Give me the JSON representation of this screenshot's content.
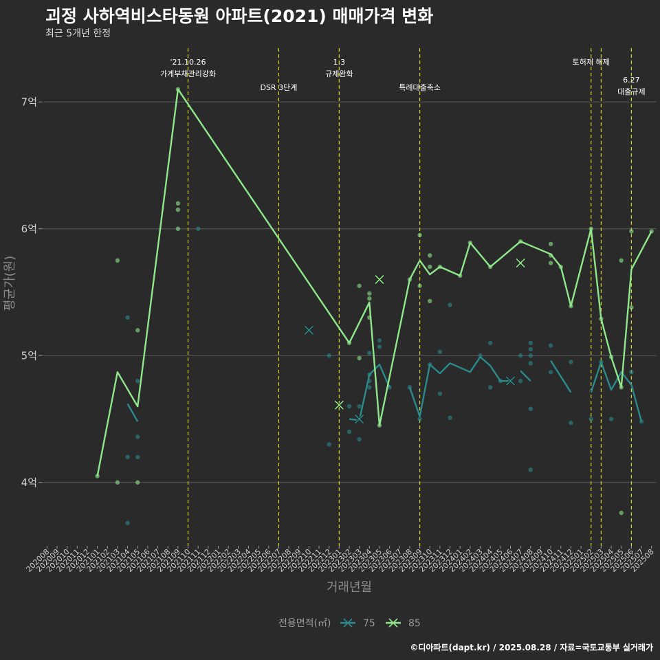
{
  "title": "괴정 사하역비스타동원 아파트(2021) 매매가격 변화",
  "subtitle": "최근 5개년 한정",
  "caption": "©디아파트(dapt.kr) / 2025.08.28 / 자료=국토교통부 실거래가",
  "colors": {
    "background": "#2b2a2b",
    "grid": "#5a5a5a",
    "event_line": "#d8d820",
    "series_75": "#2a8a8c",
    "series_85": "#8ee88a"
  },
  "chart_data": {
    "type": "line",
    "xlabel": "거래년월",
    "ylabel": "평균가(원)",
    "x_categories": [
      "202008",
      "202009",
      "202010",
      "202011",
      "202012",
      "202101",
      "202102",
      "202103",
      "202104",
      "202105",
      "202106",
      "202107",
      "202108",
      "202109",
      "202110",
      "202111",
      "202112",
      "202201",
      "202202",
      "202203",
      "202204",
      "202205",
      "202206",
      "202207",
      "202208",
      "202209",
      "202210",
      "202211",
      "202212",
      "202301",
      "202302",
      "202303",
      "202304",
      "202305",
      "202306",
      "202307",
      "202308",
      "202309",
      "202310",
      "202311",
      "202312",
      "202401",
      "202402",
      "202403",
      "202404",
      "202405",
      "202406",
      "202407",
      "202408",
      "202409",
      "202410",
      "202411",
      "202412",
      "202501",
      "202502",
      "202503",
      "202504",
      "202505",
      "202506",
      "202507",
      "202508"
    ],
    "y_ticks": [
      {
        "value": 4.0,
        "label": "4억"
      },
      {
        "value": 5.0,
        "label": "5억"
      },
      {
        "value": 6.0,
        "label": "6억"
      },
      {
        "value": 7.0,
        "label": "7억"
      }
    ],
    "ylim": [
      3.5,
      7.5
    ],
    "y_unit": "억",
    "grid": true,
    "legend": {
      "title": "전용면적(㎡)",
      "position": "bottom",
      "entries": [
        "75",
        "85"
      ]
    },
    "events": [
      {
        "x": "202110",
        "lines": [
          "'21.10.26",
          "가계부채관리강화"
        ],
        "level": 1
      },
      {
        "x": "202207",
        "lines": [
          "DSR 3단계"
        ],
        "level": 2
      },
      {
        "x": "202301",
        "lines": [
          "1.3",
          "규제완화"
        ],
        "level": 1
      },
      {
        "x": "202309",
        "lines": [
          "특례대출축소"
        ],
        "level": 2
      },
      {
        "x": "202502",
        "lines": [
          "토허제 해제"
        ],
        "level": 1
      },
      {
        "x": "202503",
        "lines": [],
        "level": 1
      },
      {
        "x": "202506",
        "lines": [
          "6.27",
          "대출규제"
        ],
        "level": 3
      }
    ],
    "series": [
      {
        "name": "75",
        "segments": [
          [
            [
              "202104",
              4.62
            ],
            [
              "202105",
              4.48
            ]
          ],
          [
            [
              "202302",
              4.5
            ],
            [
              "202303",
              4.49
            ],
            [
              "202304",
              4.85
            ],
            [
              "202305",
              4.93
            ],
            [
              "202306",
              4.75
            ]
          ],
          [
            [
              "202308",
              4.75
            ],
            [
              "202309",
              4.52
            ],
            [
              "202310",
              4.93
            ],
            [
              "202311",
              4.86
            ],
            [
              "202312",
              4.94
            ],
            [
              "202402",
              4.87
            ],
            [
              "202403",
              4.99
            ],
            [
              "202404",
              4.92
            ],
            [
              "202405",
              4.8
            ],
            [
              "202406",
              4.8
            ]
          ],
          [
            [
              "202407",
              4.88
            ],
            [
              "202408",
              4.8
            ]
          ],
          [
            [
              "202410",
              4.96
            ],
            [
              "202412",
              4.71
            ]
          ],
          [
            [
              "202502",
              4.71
            ],
            [
              "202503",
              4.95
            ],
            [
              "202504",
              4.73
            ],
            [
              "202505",
              4.87
            ],
            [
              "202506",
              4.77
            ],
            [
              "202507",
              4.48
            ]
          ]
        ],
        "points": [
          [
            "202104",
            4.2
          ],
          [
            "202104",
            3.68
          ],
          [
            "202104",
            5.3
          ],
          [
            "202105",
            4.8
          ],
          [
            "202105",
            4.36
          ],
          [
            "202105",
            4.2
          ],
          [
            "202111",
            6.0
          ],
          [
            "202210",
            5.2
          ],
          [
            "202212",
            5.0
          ],
          [
            "202212",
            4.3
          ],
          [
            "202302",
            4.6
          ],
          [
            "202302",
            4.4
          ],
          [
            "202303",
            4.6
          ],
          [
            "202303",
            4.34
          ],
          [
            "202304",
            4.85
          ],
          [
            "202304",
            4.8
          ],
          [
            "202304",
            4.75
          ],
          [
            "202304",
            5.02
          ],
          [
            "202305",
            5.12
          ],
          [
            "202305",
            5.07
          ],
          [
            "202306",
            4.75
          ],
          [
            "202308",
            4.75
          ],
          [
            "202309",
            4.5
          ],
          [
            "202310",
            4.93
          ],
          [
            "202311",
            5.03
          ],
          [
            "202311",
            4.7
          ],
          [
            "202312",
            5.4
          ],
          [
            "202312",
            4.51
          ],
          [
            "202403",
            5.0
          ],
          [
            "202404",
            5.1
          ],
          [
            "202404",
            4.75
          ],
          [
            "202405",
            4.8
          ],
          [
            "202406",
            4.8
          ],
          [
            "202407",
            4.8
          ],
          [
            "202407",
            5.0
          ],
          [
            "202408",
            4.1
          ],
          [
            "202408",
            4.58
          ],
          [
            "202408",
            4.94
          ],
          [
            "202408",
            5.0
          ],
          [
            "202408",
            5.05
          ],
          [
            "202408",
            5.1
          ],
          [
            "202410",
            4.87
          ],
          [
            "202410",
            5.08
          ],
          [
            "202412",
            4.95
          ],
          [
            "202412",
            4.47
          ],
          [
            "202502",
            4.5
          ],
          [
            "202503",
            4.95
          ],
          [
            "202504",
            4.5
          ],
          [
            "202506",
            4.87
          ],
          [
            "202507",
            4.48
          ]
        ],
        "x_marks": [
          [
            "202210",
            5.2
          ],
          [
            "202303",
            4.5
          ],
          [
            "202406",
            4.8
          ]
        ]
      },
      {
        "name": "85",
        "segments": [
          [
            [
              "202101",
              4.05
            ],
            [
              "202103",
              4.87
            ],
            [
              "202105",
              4.6
            ],
            [
              "202109",
              7.1
            ],
            [
              "202302",
              5.1
            ],
            [
              "202304",
              5.42
            ],
            [
              "202305",
              4.45
            ],
            [
              "202308",
              5.6
            ],
            [
              "202309",
              5.75
            ],
            [
              "202310",
              5.64
            ],
            [
              "202311",
              5.7
            ],
            [
              "202401",
              5.63
            ],
            [
              "202402",
              5.89
            ],
            [
              "202404",
              5.7
            ],
            [
              "202407",
              5.9
            ],
            [
              "202410",
              5.8
            ],
            [
              "202411",
              5.7
            ],
            [
              "202412",
              5.39
            ],
            [
              "202502",
              6.0
            ],
            [
              "202503",
              5.29
            ],
            [
              "202504",
              4.99
            ],
            [
              "202505",
              4.75
            ],
            [
              "202506",
              5.68
            ],
            [
              "202508",
              5.98
            ]
          ]
        ],
        "points": [
          [
            "202101",
            4.05
          ],
          [
            "202103",
            5.75
          ],
          [
            "202103",
            4.0
          ],
          [
            "202105",
            5.2
          ],
          [
            "202105",
            4.0
          ],
          [
            "202109",
            7.1
          ],
          [
            "202109",
            6.2
          ],
          [
            "202109",
            6.15
          ],
          [
            "202109",
            6.0
          ],
          [
            "202302",
            5.1
          ],
          [
            "202303",
            5.55
          ],
          [
            "202303",
            4.98
          ],
          [
            "202304",
            5.49
          ],
          [
            "202304",
            5.45
          ],
          [
            "202304",
            5.3
          ],
          [
            "202305",
            4.45
          ],
          [
            "202308",
            5.6
          ],
          [
            "202309",
            5.95
          ],
          [
            "202309",
            5.55
          ],
          [
            "202310",
            5.79
          ],
          [
            "202310",
            5.7
          ],
          [
            "202310",
            5.43
          ],
          [
            "202311",
            5.7
          ],
          [
            "202401",
            5.63
          ],
          [
            "202402",
            5.89
          ],
          [
            "202404",
            5.7
          ],
          [
            "202407",
            5.9
          ],
          [
            "202410",
            5.88
          ],
          [
            "202410",
            5.79
          ],
          [
            "202410",
            5.73
          ],
          [
            "202411",
            5.7
          ],
          [
            "202412",
            5.39
          ],
          [
            "202502",
            6.0
          ],
          [
            "202503",
            5.29
          ],
          [
            "202504",
            4.99
          ],
          [
            "202505",
            5.75
          ],
          [
            "202505",
            4.75
          ],
          [
            "202505",
            3.76
          ],
          [
            "202506",
            5.98
          ],
          [
            "202506",
            5.38
          ],
          [
            "202508",
            5.98
          ]
        ],
        "x_marks": [
          [
            "202301",
            4.61
          ],
          [
            "202305",
            5.6
          ],
          [
            "202407",
            5.73
          ]
        ]
      }
    ]
  }
}
